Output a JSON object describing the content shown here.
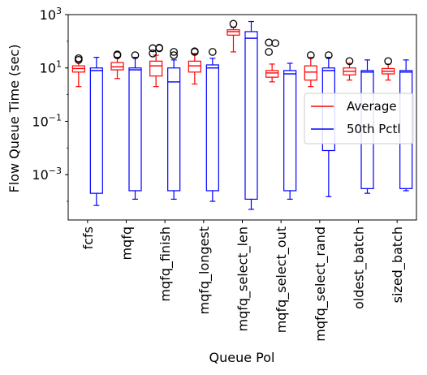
{
  "chart_data": {
    "type": "box",
    "xlabel": "Queue Pol",
    "ylabel": "Flow Queue Time (sec)",
    "yscale": "log",
    "ylim": [
      2e-05,
      1000
    ],
    "yticks": [
      {
        "value": 0.001,
        "base": "10",
        "exp": "−3"
      },
      {
        "value": 0.1,
        "base": "10",
        "exp": "−1"
      },
      {
        "value": 10,
        "base": "10",
        "exp": "1"
      },
      {
        "value": 1000,
        "base": "10",
        "exp": "3"
      }
    ],
    "legend": {
      "position": "center-right"
    },
    "categories": [
      "fcfs",
      "mqfq",
      "mqfq_finish",
      "mqfq_longest",
      "mqfq_select_len",
      "mqfq_select_out",
      "mqfq_select_rand",
      "oldest_batch",
      "sized_batch"
    ],
    "series": [
      {
        "name": "Average",
        "color": "#ff0000",
        "boxes": [
          {
            "whislo": 2.0,
            "q1": 7.0,
            "med": 9.5,
            "q3": 12.0,
            "whishi": 17.0,
            "fliers": [
              20,
              23
            ]
          },
          {
            "whislo": 4.0,
            "q1": 8.5,
            "med": 11.0,
            "q3": 16.0,
            "whishi": 25.0,
            "fliers": [
              30,
              32
            ]
          },
          {
            "whislo": 2.0,
            "q1": 5.0,
            "med": 12.0,
            "q3": 18.0,
            "whishi": 30.0,
            "fliers": [
              35,
              55,
              55,
              57
            ]
          },
          {
            "whislo": 2.5,
            "q1": 7.0,
            "med": 12.0,
            "q3": 18.0,
            "whishi": 35.0,
            "fliers": [
              40,
              42
            ]
          },
          {
            "whislo": 40.0,
            "q1": 170.0,
            "med": 230.0,
            "q3": 270.0,
            "whishi": 330.0,
            "fliers": [
              450
            ]
          },
          {
            "whislo": 3.0,
            "q1": 4.5,
            "med": 6.5,
            "q3": 8.0,
            "whishi": 14.0,
            "fliers": [
              40,
              85,
              90
            ]
          },
          {
            "whislo": 2.0,
            "q1": 3.5,
            "med": 7.0,
            "q3": 12.0,
            "whishi": 25.0,
            "fliers": [
              30
            ]
          },
          {
            "whislo": 3.5,
            "q1": 5.5,
            "med": 7.5,
            "q3": 10.0,
            "whishi": 15.0,
            "fliers": [
              18
            ]
          },
          {
            "whislo": 3.5,
            "q1": 6.0,
            "med": 7.5,
            "q3": 9.5,
            "whishi": 14.0,
            "fliers": [
              18
            ]
          }
        ]
      },
      {
        "name": "50th Pctl",
        "color": "#0000ff",
        "boxes": [
          {
            "whislo": 7e-05,
            "q1": 0.0002,
            "med": 8.0,
            "q3": 10.0,
            "whishi": 25.0,
            "fliers": []
          },
          {
            "whislo": 0.00012,
            "q1": 0.00025,
            "med": 8.5,
            "q3": 10.0,
            "whishi": 25.0,
            "fliers": [
              30
            ]
          },
          {
            "whislo": 0.00012,
            "q1": 0.00025,
            "med": 3.0,
            "q3": 10.0,
            "whishi": 20.0,
            "fliers": [
              30,
              40
            ]
          },
          {
            "whislo": 0.0001,
            "q1": 0.00025,
            "med": 10.0,
            "q3": 13.0,
            "whishi": 23.0,
            "fliers": [
              40
            ]
          },
          {
            "whislo": 5e-05,
            "q1": 0.00012,
            "med": 130.0,
            "q3": 230.0,
            "whishi": 550.0,
            "fliers": []
          },
          {
            "whislo": 0.00012,
            "q1": 0.00025,
            "med": 6.0,
            "q3": 8.0,
            "whishi": 15.0,
            "fliers": []
          },
          {
            "whislo": 0.00015,
            "q1": 0.008,
            "med": 8.0,
            "q3": 10.0,
            "whishi": 25.0,
            "fliers": [
              30
            ]
          },
          {
            "whislo": 0.0002,
            "q1": 0.0003,
            "med": 7.0,
            "q3": 8.0,
            "whishi": 20.0,
            "fliers": []
          },
          {
            "whislo": 0.00025,
            "q1": 0.0003,
            "med": 7.0,
            "q3": 8.0,
            "whishi": 20.0,
            "fliers": []
          }
        ]
      }
    ]
  }
}
